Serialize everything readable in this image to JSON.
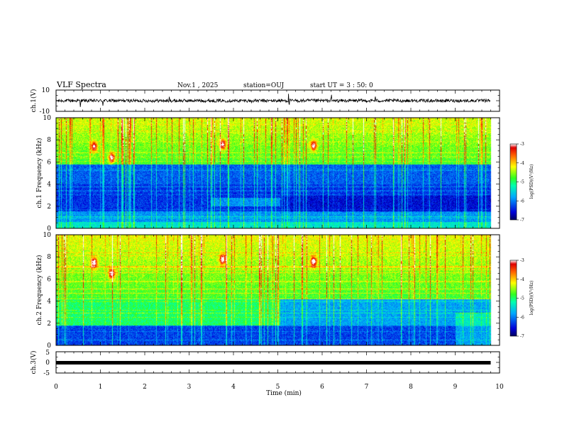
{
  "chart_data": {
    "type": "heatmap",
    "title": "VLF Spectra",
    "date_label": "Nov.1 , 2025",
    "station_label": "station=OUJ",
    "start_label": "start UT = 3 : 50: 0",
    "xlabel": "Time (min)",
    "xlim": [
      0,
      10
    ],
    "x_ticks": [
      "0",
      "1",
      "2",
      "3",
      "4",
      "5",
      "6",
      "7",
      "8",
      "9",
      "10"
    ],
    "data_end_min": 9.8,
    "panels": [
      {
        "name": "ch1-waveform",
        "type": "line",
        "ylabel": "ch.1(V)",
        "ylim": [
          -10,
          10
        ],
        "y_ticks": [
          "10",
          "-10"
        ],
        "baseline": 0,
        "noise_amplitude": 1.5,
        "spike_times_min": [
          0.55,
          1.05,
          2.55,
          4.4,
          5.25,
          6.2,
          7.2
        ]
      },
      {
        "name": "ch1-spectrogram",
        "type": "heatmap",
        "ylabel": "ch.1 Frequency (kHz)",
        "ylim": [
          0,
          10
        ],
        "y_ticks": [
          "0",
          "2",
          "4",
          "6",
          "8",
          "10"
        ],
        "colorbar_label": "log(PSD)(V²/Hz)",
        "colorbar_range": [
          -7,
          -3
        ],
        "colorbar_ticks": [
          "-3",
          "-4",
          "-5",
          "-6",
          "-7"
        ],
        "features": {
          "hot_spots": [
            {
              "t_min": 0.85,
              "f_khz": 7.4
            },
            {
              "t_min": 1.25,
              "f_khz": 6.4
            },
            {
              "t_min": 3.75,
              "f_khz": 7.6
            },
            {
              "t_min": 5.8,
              "f_khz": 7.5
            }
          ],
          "quiet_band_khz": [
            1.5,
            5.5
          ],
          "change_time_min": 5.05
        }
      },
      {
        "name": "ch2-spectrogram",
        "type": "heatmap",
        "ylabel": "ch.2 Frequency (kHz)",
        "ylim": [
          0,
          10
        ],
        "y_ticks": [
          "0",
          "2",
          "4",
          "6",
          "8",
          "10"
        ],
        "colorbar_label": "log(PSD)(V²/Hz)",
        "colorbar_range": [
          -7,
          -3
        ],
        "colorbar_ticks": [
          "-3",
          "-4",
          "-5",
          "-6",
          "-7"
        ],
        "features": {
          "hot_spots": [
            {
              "t_min": 0.85,
              "f_khz": 7.5
            },
            {
              "t_min": 1.25,
              "f_khz": 6.5
            },
            {
              "t_min": 3.75,
              "f_khz": 7.8
            },
            {
              "t_min": 5.8,
              "f_khz": 7.6
            }
          ],
          "active_band_khz": [
            1.8,
            4.2
          ],
          "change_time_min": 5.05
        }
      },
      {
        "name": "ch3-waveform",
        "type": "line",
        "ylabel": "ch.3(V)",
        "ylim": [
          -5,
          5
        ],
        "y_ticks": [
          "5",
          "0",
          "-5"
        ],
        "baseline": 0,
        "noise_amplitude": 0
      }
    ]
  }
}
